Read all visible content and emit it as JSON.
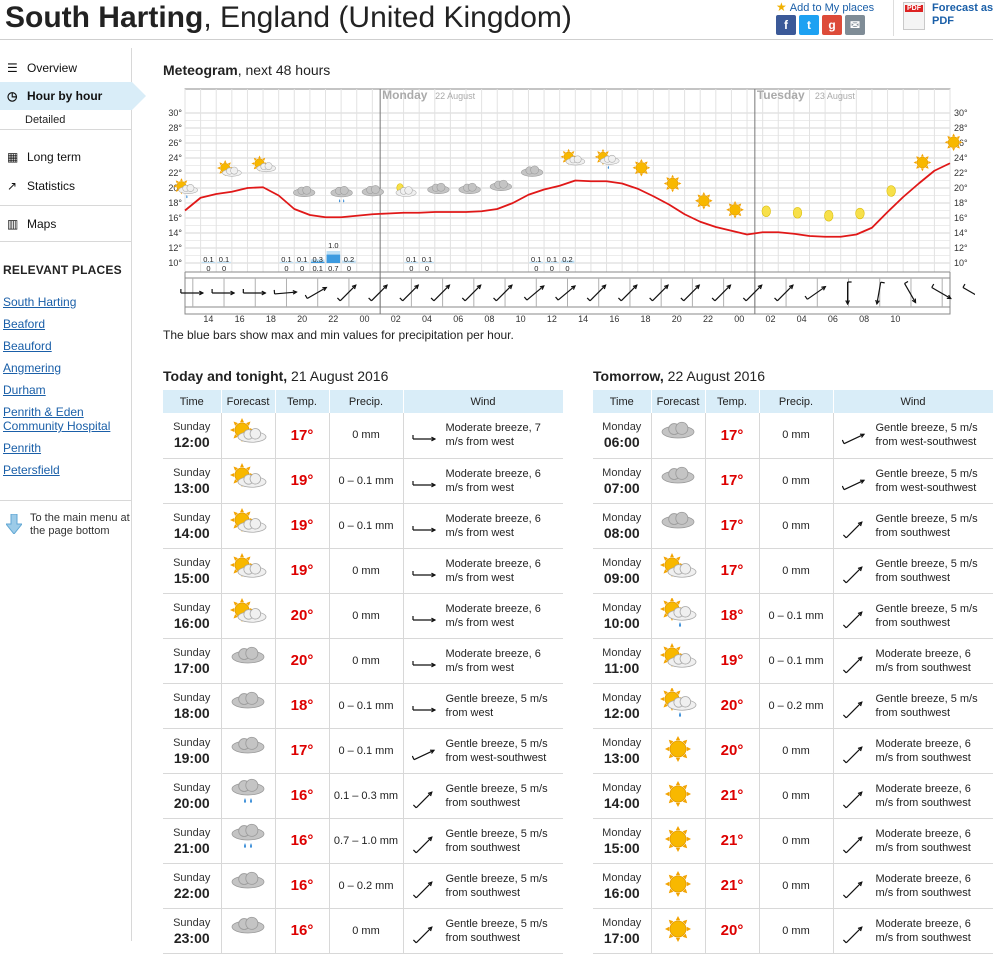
{
  "header": {
    "title_place": "South Harting",
    "title_rest": ", England (United Kingdom)",
    "add_to_places": "Add to My places",
    "share": [
      {
        "icon": "facebook-icon",
        "glyph": "f",
        "color": "#3b5998"
      },
      {
        "icon": "twitter-icon",
        "glyph": "t",
        "color": "#1da1f2"
      },
      {
        "icon": "google-icon",
        "glyph": "g",
        "color": "#dd4b39"
      },
      {
        "icon": "email-icon",
        "glyph": "✉",
        "color": "#7f8c96"
      }
    ],
    "pdf_badge": "PDF",
    "pdf_label": "Forecast as PDF"
  },
  "sidebar": {
    "overview": "Overview",
    "hour_by_hour": "Hour by hour",
    "detailed": "Detailed",
    "long_term": "Long term",
    "statistics": "Statistics",
    "maps": "Maps",
    "relevant_places_heading": "RELEVANT PLACES",
    "places": [
      "South Harting",
      "Beaford",
      "Beauford",
      "Angmering",
      "Durham",
      "Penrith & Eden Community Hospital",
      "Penrith",
      "Petersfield"
    ],
    "main_menu_link": "To the main menu at the page bottom"
  },
  "meteogram": {
    "title_bold": "Meteogram",
    "title_rest": ", next 48 hours",
    "note": "The blue bars show max and min values for precipitation per hour.",
    "day_labels": [
      {
        "name": "Monday",
        "date": "22 August",
        "hour_index": 12
      },
      {
        "name": "Tuesday",
        "date": "23 August",
        "hour_index": 36
      }
    ],
    "y_ticks": [
      "30°",
      "28°",
      "26°",
      "24°",
      "22°",
      "20°",
      "18°",
      "16°",
      "14°",
      "12°",
      "10°"
    ],
    "x_tick_labels": [
      "14",
      "16",
      "18",
      "20",
      "22",
      "00",
      "02",
      "04",
      "06",
      "08",
      "10",
      "12",
      "14",
      "16",
      "18",
      "20",
      "22",
      "00",
      "02",
      "04",
      "06",
      "08",
      "10"
    ],
    "temperature_curve": [
      17,
      18.7,
      19.2,
      19.5,
      20,
      20.1,
      19,
      17.2,
      16.4,
      16.1,
      16.1,
      16.3,
      16.5,
      16.6,
      16.7,
      16.7,
      16.8,
      16.8,
      16.8,
      16.9,
      17.2,
      18,
      19.1,
      19.8,
      20.3,
      21,
      20.9,
      20.9,
      20.6,
      19.9,
      18.9,
      17.8,
      16.5,
      15.5,
      14.8,
      14.3,
      13.8,
      14.1,
      14.1,
      13.9,
      13.6,
      13.5,
      13.5,
      13.8,
      14.7,
      16.8,
      18.8,
      20.6,
      22.3,
      23.3
    ],
    "precip_labels": [
      {
        "hour_index": 1,
        "max": "0.1",
        "min": "0"
      },
      {
        "hour_index": 2,
        "max": "0.1",
        "min": "0"
      },
      {
        "hour_index": 6,
        "max": "0.1",
        "min": "0"
      },
      {
        "hour_index": 7,
        "max": "0.1",
        "min": "0"
      },
      {
        "hour_index": 8,
        "max": "0.3",
        "min": "0.1"
      },
      {
        "hour_index": 9,
        "max": "1.0",
        "min": "0.7"
      },
      {
        "hour_index": 10,
        "max": "0.2",
        "min": "0"
      },
      {
        "hour_index": 14,
        "max": "0.1",
        "min": "0"
      },
      {
        "hour_index": 15,
        "max": "0.1",
        "min": "0"
      },
      {
        "hour_index": 22,
        "max": "0.1",
        "min": "0"
      },
      {
        "hour_index": 23,
        "max": "0.1",
        "min": "0"
      },
      {
        "hour_index": 24,
        "max": "0.2",
        "min": "0"
      }
    ],
    "symbols": [
      {
        "hour": 0,
        "icon": "sun-cloud-rain-icon"
      },
      {
        "hour": 1.4,
        "icon": "sun-cloud-icon"
      },
      {
        "hour": 2.5,
        "icon": "sun-cloud-icon"
      },
      {
        "hour": 3.8,
        "icon": "cloud-icon"
      },
      {
        "hour": 5,
        "icon": "cloud-rain-icon"
      },
      {
        "hour": 6,
        "icon": "cloud-icon"
      },
      {
        "hour": 7,
        "icon": "moon-cloud-icon"
      },
      {
        "hour": 8.1,
        "icon": "cloud-icon"
      },
      {
        "hour": 9.1,
        "icon": "cloud-icon"
      },
      {
        "hour": 10.1,
        "icon": "cloud-icon"
      },
      {
        "hour": 11.1,
        "icon": "cloud-icon"
      },
      {
        "hour": 12.4,
        "icon": "sun-cloud-icon"
      },
      {
        "hour": 13.5,
        "icon": "sun-cloud-rain-icon"
      },
      {
        "hour": 14.6,
        "icon": "sun-icon"
      },
      {
        "hour": 15.6,
        "icon": "sun-icon"
      },
      {
        "hour": 16.6,
        "icon": "sun-icon"
      },
      {
        "hour": 17.6,
        "icon": "sun-icon"
      },
      {
        "hour": 18.6,
        "icon": "moon-icon"
      },
      {
        "hour": 19.6,
        "icon": "moon-icon"
      },
      {
        "hour": 20.6,
        "icon": "moon-icon"
      },
      {
        "hour": 21.6,
        "icon": "moon-icon"
      },
      {
        "hour": 22.6,
        "icon": "moon-icon"
      },
      {
        "hour": 23.6,
        "icon": "sun-icon"
      },
      {
        "hour": 24.6,
        "icon": "sun-icon"
      }
    ],
    "wind_dirs": [
      270,
      270,
      270,
      265,
      240,
      225,
      225,
      225,
      225,
      225,
      225,
      230,
      230,
      225,
      225,
      225,
      225,
      225,
      225,
      225,
      235,
      0,
      10,
      330,
      300,
      300,
      315,
      330,
      300
    ]
  },
  "today_table": {
    "title_bold": "Today and tonight,",
    "title_rest": " 21 August 2016",
    "headers": [
      "Time",
      "Forecast",
      "Temp.",
      "Precip.",
      "Wind"
    ],
    "rows": [
      {
        "day": "Sunday",
        "hour": "12:00",
        "icon": "sun-cloud-icon",
        "temp": "17°",
        "precip": "0 mm",
        "wind": "Moderate breeze, 7 m/s from west",
        "dir": 270
      },
      {
        "day": "Sunday",
        "hour": "13:00",
        "icon": "sun-cloud-icon",
        "temp": "19°",
        "precip": "0 – 0.1 mm",
        "wind": "Moderate breeze, 6 m/s from west",
        "dir": 270
      },
      {
        "day": "Sunday",
        "hour": "14:00",
        "icon": "sun-cloud-icon",
        "temp": "19°",
        "precip": "0 – 0.1 mm",
        "wind": "Moderate breeze, 6 m/s from west",
        "dir": 270
      },
      {
        "day": "Sunday",
        "hour": "15:00",
        "icon": "sun-cloud-icon",
        "temp": "19°",
        "precip": "0 mm",
        "wind": "Moderate breeze, 6 m/s from west",
        "dir": 270
      },
      {
        "day": "Sunday",
        "hour": "16:00",
        "icon": "sun-cloud-icon",
        "temp": "20°",
        "precip": "0 mm",
        "wind": "Moderate breeze, 6 m/s from west",
        "dir": 270
      },
      {
        "day": "Sunday",
        "hour": "17:00",
        "icon": "cloud-icon",
        "temp": "20°",
        "precip": "0 mm",
        "wind": "Moderate breeze, 6 m/s from west",
        "dir": 270
      },
      {
        "day": "Sunday",
        "hour": "18:00",
        "icon": "cloud-icon",
        "temp": "18°",
        "precip": "0 – 0.1 mm",
        "wind": "Gentle breeze, 5 m/s from west",
        "dir": 270
      },
      {
        "day": "Sunday",
        "hour": "19:00",
        "icon": "cloud-icon",
        "temp": "17°",
        "precip": "0 – 0.1 mm",
        "wind": "Gentle breeze, 5 m/s from west-southwest",
        "dir": 245
      },
      {
        "day": "Sunday",
        "hour": "20:00",
        "icon": "cloud-rain-icon",
        "temp": "16°",
        "precip": "0.1 – 0.3 mm",
        "wind": "Gentle breeze, 5 m/s from southwest",
        "dir": 225
      },
      {
        "day": "Sunday",
        "hour": "21:00",
        "icon": "cloud-rain-icon",
        "temp": "16°",
        "precip": "0.7 – 1.0 mm",
        "wind": "Gentle breeze, 5 m/s from southwest",
        "dir": 225
      },
      {
        "day": "Sunday",
        "hour": "22:00",
        "icon": "cloud-icon",
        "temp": "16°",
        "precip": "0 – 0.2 mm",
        "wind": "Gentle breeze, 5 m/s from southwest",
        "dir": 225
      },
      {
        "day": "Sunday",
        "hour": "23:00",
        "icon": "cloud-icon",
        "temp": "16°",
        "precip": "0 mm",
        "wind": "Gentle breeze, 5 m/s from southwest",
        "dir": 225
      }
    ]
  },
  "tomorrow_table": {
    "title_bold": "Tomorrow,",
    "title_rest": " 22 August 2016",
    "headers": [
      "Time",
      "Forecast",
      "Temp.",
      "Precip.",
      "Wind"
    ],
    "rows": [
      {
        "day": "Monday",
        "hour": "06:00",
        "icon": "cloud-icon",
        "temp": "17°",
        "precip": "0 mm",
        "wind": "Gentle breeze, 5 m/s from west-southwest",
        "dir": 245
      },
      {
        "day": "Monday",
        "hour": "07:00",
        "icon": "cloud-icon",
        "temp": "17°",
        "precip": "0 mm",
        "wind": "Gentle breeze, 5 m/s from west-southwest",
        "dir": 245
      },
      {
        "day": "Monday",
        "hour": "08:00",
        "icon": "cloud-icon",
        "temp": "17°",
        "precip": "0 mm",
        "wind": "Gentle breeze, 5 m/s from southwest",
        "dir": 225
      },
      {
        "day": "Monday",
        "hour": "09:00",
        "icon": "sun-cloud-icon",
        "temp": "17°",
        "precip": "0 mm",
        "wind": "Gentle breeze, 5 m/s from southwest",
        "dir": 225
      },
      {
        "day": "Monday",
        "hour": "10:00",
        "icon": "sun-cloud-rain-icon",
        "temp": "18°",
        "precip": "0 – 0.1 mm",
        "wind": "Gentle breeze, 5 m/s from southwest",
        "dir": 225
      },
      {
        "day": "Monday",
        "hour": "11:00",
        "icon": "sun-cloud-icon",
        "temp": "19°",
        "precip": "0 – 0.1 mm",
        "wind": "Moderate breeze, 6 m/s from southwest",
        "dir": 225
      },
      {
        "day": "Monday",
        "hour": "12:00",
        "icon": "sun-cloud-rain-icon",
        "temp": "20°",
        "precip": "0 – 0.2 mm",
        "wind": "Gentle breeze, 5 m/s from southwest",
        "dir": 225
      },
      {
        "day": "Monday",
        "hour": "13:00",
        "icon": "sun-icon",
        "temp": "20°",
        "precip": "0 mm",
        "wind": "Moderate breeze, 6 m/s from southwest",
        "dir": 225
      },
      {
        "day": "Monday",
        "hour": "14:00",
        "icon": "sun-icon",
        "temp": "21°",
        "precip": "0 mm",
        "wind": "Moderate breeze, 6 m/s from southwest",
        "dir": 225
      },
      {
        "day": "Monday",
        "hour": "15:00",
        "icon": "sun-icon",
        "temp": "21°",
        "precip": "0 mm",
        "wind": "Moderate breeze, 6 m/s from southwest",
        "dir": 225
      },
      {
        "day": "Monday",
        "hour": "16:00",
        "icon": "sun-icon",
        "temp": "21°",
        "precip": "0 mm",
        "wind": "Moderate breeze, 6 m/s from southwest",
        "dir": 225
      },
      {
        "day": "Monday",
        "hour": "17:00",
        "icon": "sun-icon",
        "temp": "20°",
        "precip": "0 mm",
        "wind": "Moderate breeze, 6 m/s from southwest",
        "dir": 225
      }
    ]
  }
}
